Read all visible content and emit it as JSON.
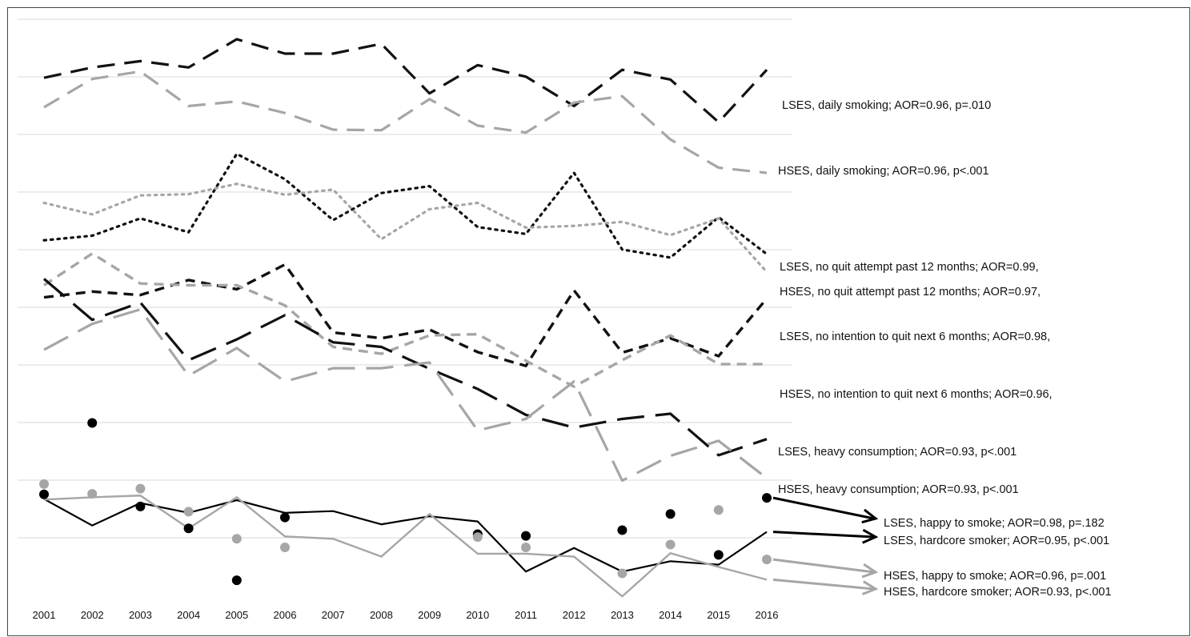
{
  "chart_data": {
    "type": "line",
    "title": "",
    "xlabel": "",
    "ylabel": "",
    "grid": true,
    "x": [
      "2001",
      "2002",
      "2003",
      "2004",
      "2005",
      "2006",
      "2007",
      "2008",
      "2009",
      "2010",
      "2011",
      "2012",
      "2013",
      "2014",
      "2015",
      "2016"
    ],
    "series": [
      {
        "name": "LSES, daily smoking; AOR=0.96, p=.010",
        "label": "LSES, daily smoking; AOR=0.96, p=.010",
        "style": "dash-long",
        "color": "#111111",
        "values": [
          7.33,
          7.51,
          7.62,
          7.51,
          8.0,
          7.75,
          7.75,
          7.92,
          7.06,
          7.55,
          7.35,
          6.84,
          7.47,
          7.3,
          6.56,
          7.47
        ]
      },
      {
        "name": "HSES, daily smoking; AOR=0.96, p<.001",
        "label": "HSES, daily smoking; AOR=0.96, p<.001",
        "style": "dash-long",
        "color": "#a6a6a6",
        "values": [
          6.82,
          7.31,
          7.44,
          6.84,
          6.92,
          6.72,
          6.43,
          6.42,
          6.96,
          6.5,
          6.38,
          6.9,
          7.01,
          6.26,
          5.77,
          5.68
        ]
      },
      {
        "name": "LSES, no quit attempt past 12 months; AOR=0.99,",
        "label": "LSES, no quit attempt past 12 months; AOR=0.99,",
        "style": "dot",
        "color": "#111111",
        "values": [
          4.51,
          4.59,
          4.89,
          4.65,
          6.01,
          5.57,
          4.86,
          5.33,
          5.45,
          4.74,
          4.62,
          5.68,
          4.35,
          4.21,
          4.91,
          4.27
        ]
      },
      {
        "name": "HSES, no quit attempt past 12 months; AOR=0.97,",
        "label": "HSES, no quit attempt past 12 months; AOR=0.97,",
        "style": "dot",
        "color": "#a6a6a6",
        "values": [
          5.16,
          4.96,
          5.29,
          5.31,
          5.49,
          5.3,
          5.39,
          4.53,
          5.05,
          5.16,
          4.73,
          4.76,
          4.83,
          4.6,
          4.89,
          3.96
        ]
      },
      {
        "name": "LSES, no intention to quit next 6 months; AOR=0.98,",
        "label": "LSES, no intention to quit next 6 months; AOR=0.98,",
        "style": "dash-medium",
        "color": "#111111",
        "values": [
          3.52,
          3.62,
          3.56,
          3.82,
          3.66,
          4.09,
          2.91,
          2.81,
          2.96,
          2.57,
          2.33,
          3.64,
          2.56,
          2.81,
          2.5,
          3.5
        ]
      },
      {
        "name": "HSES, no intention to quit next 6 months; AOR=0.96,",
        "label": "HSES, no intention to quit next 6 months; AOR=0.96,",
        "style": "dash-medium",
        "color": "#a6a6a6",
        "values": [
          3.73,
          4.28,
          3.76,
          3.73,
          3.73,
          3.38,
          2.66,
          2.54,
          2.86,
          2.88,
          2.42,
          1.97,
          2.43,
          2.86,
          2.36,
          2.36
        ]
      },
      {
        "name": "LSES, heavy consumption; AOR=0.93, p<.001",
        "label": "LSES, heavy consumption; AOR=0.93, p<.001",
        "style": "dash-xlong",
        "color": "#111111",
        "values": [
          3.84,
          3.13,
          3.43,
          2.43,
          2.79,
          3.21,
          2.74,
          2.66,
          2.28,
          1.93,
          1.48,
          1.26,
          1.41,
          1.5,
          0.78,
          1.06
        ]
      },
      {
        "name": "HSES, heavy consumption; AOR=0.93, p<.001",
        "label": "HSES, heavy consumption; AOR=0.93, p<.001",
        "style": "dash-xlong",
        "color": "#a6a6a6",
        "values": [
          2.61,
          3.06,
          3.31,
          2.16,
          2.64,
          2.06,
          2.29,
          2.29,
          2.39,
          1.21,
          1.41,
          2.06,
          0.34,
          0.77,
          1.03,
          0.38
        ]
      },
      {
        "name": "LSES, happy to smoke; AOR=0.98, p=.182",
        "label": "LSES, happy to smoke; AOR=0.98, p=.182",
        "style": "marker",
        "color": "#000000",
        "values": [
          0.1,
          1.34,
          -0.11,
          -0.49,
          -1.39,
          -0.3,
          null,
          null,
          null,
          -0.59,
          -0.62,
          null,
          -0.52,
          -0.24,
          -0.95,
          0.04
        ]
      },
      {
        "name": "LSES, hardcore smoker; AOR=0.95, p<.001",
        "label": "LSES, hardcore smoker; AOR=0.95, p<.001",
        "style": "solid",
        "color": "#000000",
        "values": [
          0.02,
          -0.44,
          -0.05,
          -0.22,
          0.0,
          -0.22,
          -0.19,
          -0.42,
          -0.28,
          -0.37,
          -1.24,
          -0.83,
          -1.24,
          -1.06,
          -1.12,
          -0.55
        ]
      },
      {
        "name": "HSES, happy to smoke; AOR=0.96, p=.001",
        "label": "HSES, happy to smoke; AOR=0.96, p=.001",
        "style": "marker",
        "color": "#a6a6a6",
        "values": [
          0.28,
          0.11,
          0.2,
          -0.2,
          -0.67,
          -0.82,
          null,
          null,
          null,
          -0.64,
          -0.82,
          null,
          -1.27,
          -0.77,
          -0.17,
          -1.03
        ]
      },
      {
        "name": "HSES, hardcore smoker; AOR=0.93, p<.001",
        "label": "HSES, hardcore smoker; AOR=0.93, p<.001",
        "style": "solid-light",
        "color": "#a6a6a6",
        "values": [
          0.01,
          0.05,
          0.08,
          -0.49,
          0.05,
          -0.63,
          -0.67,
          -0.98,
          -0.24,
          -0.93,
          -0.93,
          -0.98,
          -1.67,
          -0.92,
          -1.16,
          -1.38
        ]
      }
    ]
  }
}
